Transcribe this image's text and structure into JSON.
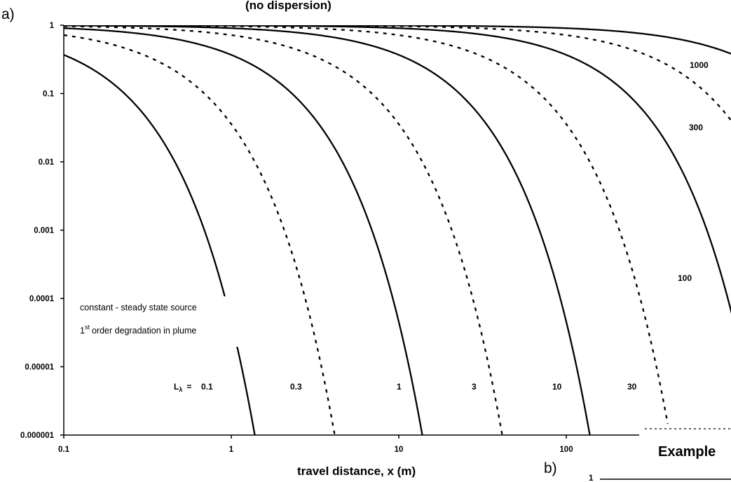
{
  "chart_data": {
    "type": "line",
    "panel_label": "a)",
    "title": "(no dispersion)",
    "xlabel": "travel distance, x (m)",
    "ylabel": "",
    "xscale": "log",
    "yscale": "log",
    "xlim": [
      0.1,
      1000
    ],
    "ylim": [
      1e-06,
      1
    ],
    "x_ticks": [
      "0.1",
      "1",
      "10",
      "100"
    ],
    "y_ticks": [
      "1",
      "0.1",
      "0.01",
      "0.001",
      "0.0001",
      "0.00001",
      "0.000001"
    ],
    "grid": false,
    "legend": "none",
    "annotations": [
      "constant - steady state source",
      "order degradation in plume"
    ],
    "annotation_prefix": "1",
    "annotation_superscript": "st",
    "series_label_prefix": "L",
    "series_label_subscript": "λ",
    "series_label_equals": "=",
    "series": [
      {
        "label": "0.1",
        "L": 0.1,
        "style": "solid"
      },
      {
        "label": "0.3",
        "L": 0.3,
        "style": "dashed"
      },
      {
        "label": "1",
        "L": 1,
        "style": "solid"
      },
      {
        "label": "3",
        "L": 3,
        "style": "dashed"
      },
      {
        "label": "10",
        "L": 10,
        "style": "solid"
      },
      {
        "label": "30",
        "L": 30,
        "style": "dashed"
      },
      {
        "label": "100",
        "L": 100,
        "style": "solid"
      },
      {
        "label": "300",
        "L": 300,
        "style": "dashed"
      },
      {
        "label": "1000",
        "L": 1000,
        "style": "solid"
      }
    ],
    "inset_panel_label": "b)",
    "inset_title": "Example",
    "inset_tick": "1"
  }
}
